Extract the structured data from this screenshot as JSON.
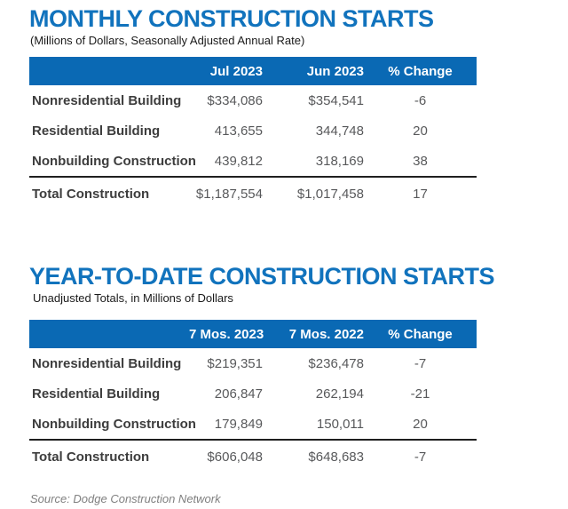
{
  "colors": {
    "header_band_blue": "#0a69b4",
    "title_blue": "#1173bd",
    "value_gray": "#58595b",
    "label_dark": "#3d3d3d"
  },
  "source_note": "Source: Dodge Construction Network",
  "chart_data": [
    {
      "type": "table",
      "title": "MONTHLY CONSTRUCTION STARTS",
      "subtitle": "(Millions of Dollars, Seasonally Adjusted Annual Rate)",
      "columns": [
        "",
        "Jul 2023",
        "Jun 2023",
        "% Change"
      ],
      "rows": [
        [
          "Nonresidential Building",
          "$334,086",
          "$354,541",
          "-6"
        ],
        [
          "Residential Building",
          "413,655",
          "344,748",
          "20"
        ],
        [
          "Nonbuilding Construction",
          "439,812",
          "318,169",
          "38"
        ],
        [
          "Total Construction",
          "$1,187,554",
          "$1,017,458",
          "17"
        ]
      ]
    },
    {
      "type": "table",
      "title": "YEAR-TO-DATE CONSTRUCTION STARTS",
      "subtitle": "Unadjusted Totals, in Millions of Dollars",
      "columns": [
        "",
        "7 Mos. 2023",
        "7 Mos. 2022",
        "% Change"
      ],
      "rows": [
        [
          "Nonresidential Building",
          "$219,351",
          "$236,478",
          "-7"
        ],
        [
          "Residential Building",
          "206,847",
          "262,194",
          "-21"
        ],
        [
          "Nonbuilding Construction",
          "179,849",
          "150,011",
          "20"
        ],
        [
          "Total Construction",
          "$606,048",
          "$648,683",
          "-7"
        ]
      ]
    }
  ]
}
